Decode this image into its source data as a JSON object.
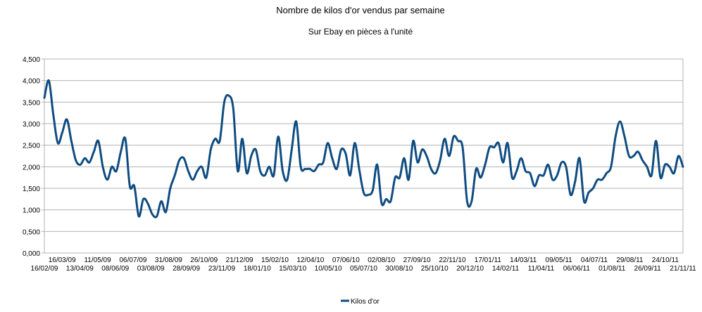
{
  "chart_data": {
    "type": "line",
    "title": "Nombre de kilos d'or vendus par semaine",
    "subtitle": "Sur Ebay en pièces à l'unité",
    "xlabel": "",
    "ylabel": "",
    "ylim": [
      0,
      4500
    ],
    "grid": true,
    "legend_position": "bottom",
    "y_ticks": [
      "0,000",
      "0,500",
      "1,000",
      "1,500",
      "2,000",
      "2,500",
      "3,000",
      "3,500",
      "4,000",
      "4,500"
    ],
    "x_labels_upper": [
      "16/03/09",
      "11/05/09",
      "06/07/09",
      "31/08/09",
      "26/10/09",
      "21/12/09",
      "15/02/10",
      "12/04/10",
      "07/06/10",
      "02/08/10",
      "27/09/10",
      "22/11/10",
      "17/01/11",
      "14/03/11",
      "09/05/11",
      "04/07/11",
      "29/08/11",
      "24/10/11"
    ],
    "x_labels_lower": [
      "16/02/09",
      "13/04/09",
      "08/06/09",
      "03/08/09",
      "28/09/09",
      "23/11/09",
      "18/01/10",
      "15/03/10",
      "10/05/10",
      "05/07/10",
      "30/08/10",
      "25/10/10",
      "20/12/10",
      "14/02/11",
      "11/04/11",
      "06/06/11",
      "01/08/11",
      "26/09/11",
      "21/11/11"
    ],
    "series": [
      {
        "name": "Kilos d'or",
        "color": "#0f4c81",
        "values": [
          3600,
          4000,
          3200,
          2550,
          2800,
          3100,
          2600,
          2150,
          2050,
          2200,
          2100,
          2350,
          2600,
          2000,
          1700,
          2000,
          1900,
          2350,
          2650,
          1550,
          1550,
          850,
          1250,
          1150,
          900,
          850,
          1200,
          950,
          1500,
          1800,
          2150,
          2200,
          1900,
          1700,
          1900,
          2000,
          1750,
          2400,
          2650,
          2600,
          3500,
          3650,
          3350,
          1900,
          2650,
          1850,
          2250,
          2400,
          1900,
          1800,
          2000,
          1800,
          2700,
          1900,
          1700,
          2400,
          3050,
          2000,
          1950,
          1950,
          1900,
          2050,
          2100,
          2550,
          2200,
          1950,
          2400,
          2300,
          1800,
          2550,
          1950,
          1400,
          1350,
          1450,
          2050,
          1150,
          1250,
          1200,
          1750,
          1750,
          2200,
          1700,
          2600,
          2100,
          2400,
          2250,
          1950,
          1850,
          2150,
          2650,
          2250,
          2700,
          2600,
          2450,
          1200,
          1200,
          1950,
          1750,
          2050,
          2450,
          2450,
          2550,
          2100,
          2550,
          1750,
          1900,
          2200,
          1900,
          1850,
          1550,
          1800,
          1800,
          2050,
          1700,
          1800,
          2100,
          2000,
          1350,
          1650,
          2200,
          1200,
          1400,
          1500,
          1700,
          1700,
          1850,
          2000,
          2700,
          3050,
          2700,
          2250,
          2250,
          2350,
          2150,
          2000,
          1800,
          2600,
          1750,
          2050,
          2000,
          1850,
          2250,
          2000
        ]
      }
    ]
  }
}
